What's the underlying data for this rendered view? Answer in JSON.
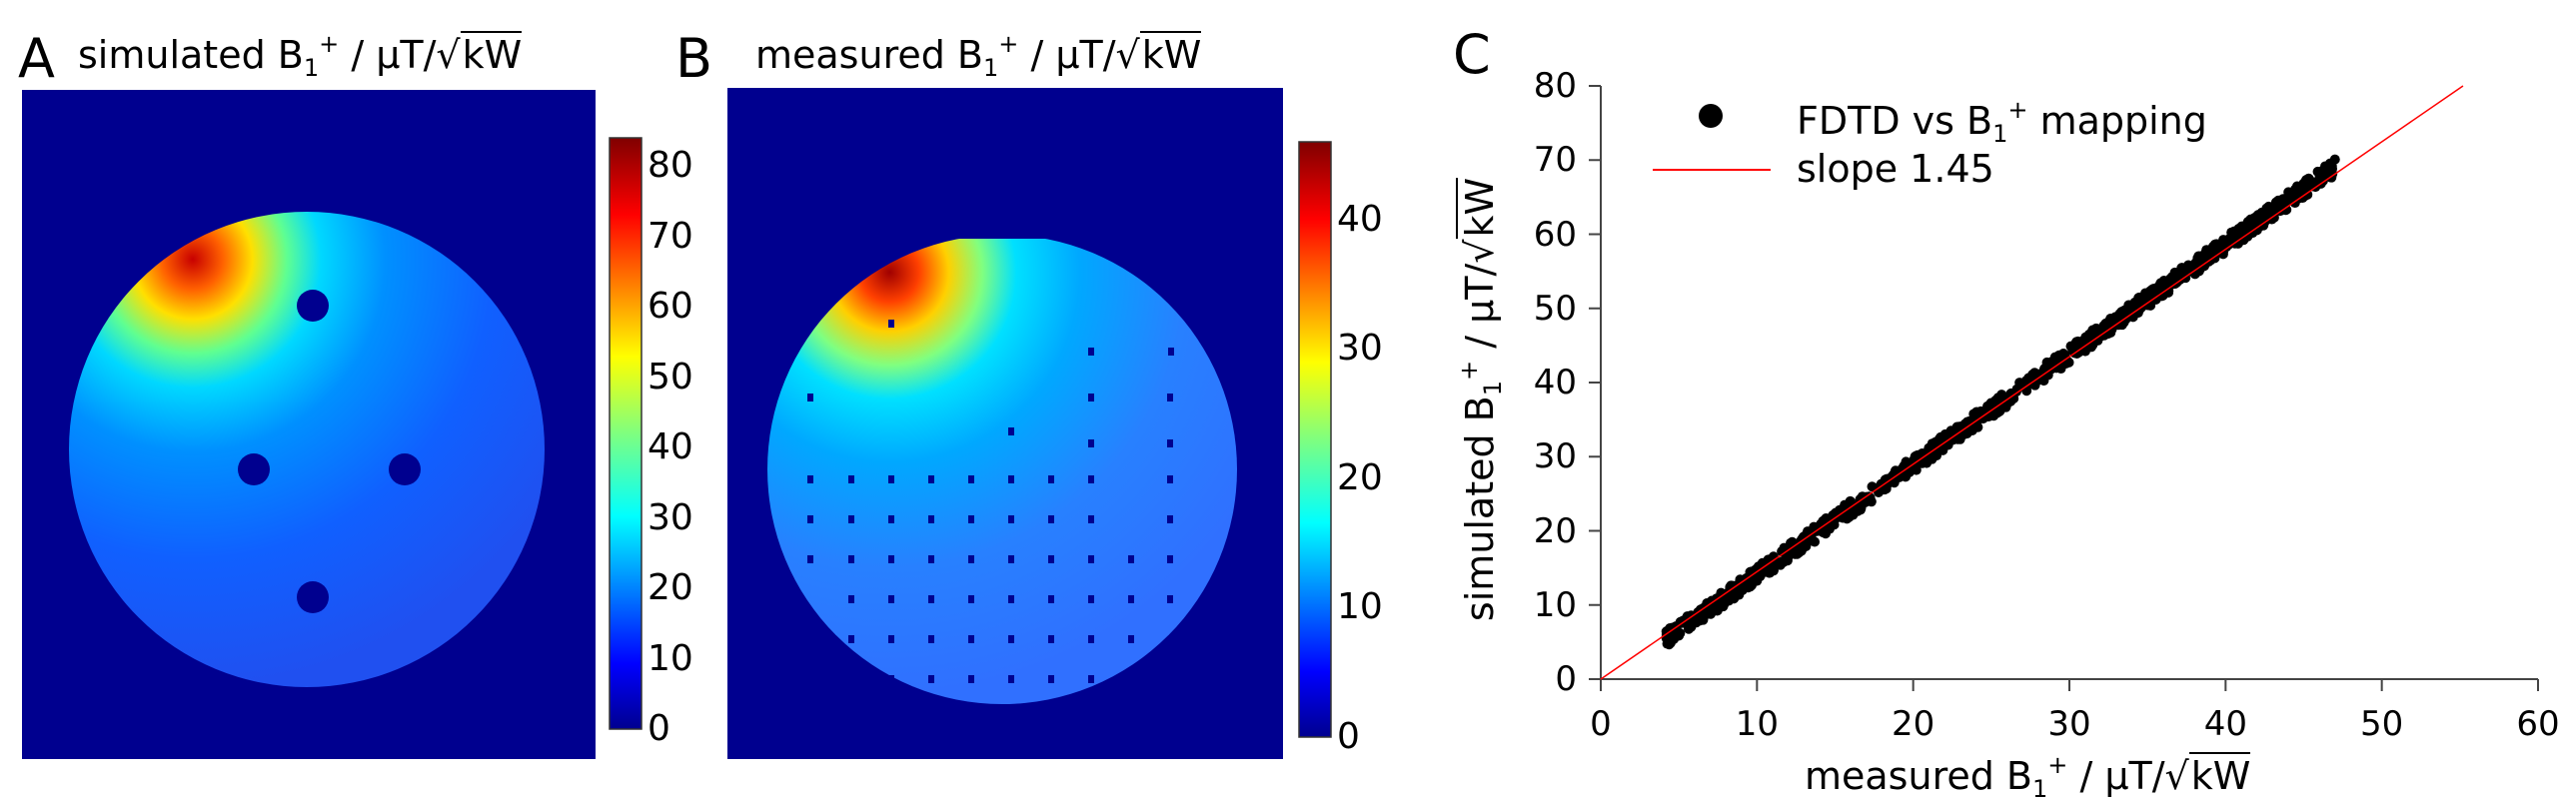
{
  "panels": {
    "a": {
      "letter": "A",
      "title_prefix": "simulated B",
      "title_sub": "1",
      "title_sup": "+",
      "title_mid": " / μT/",
      "title_root": "kW",
      "colorbar_ticks": [
        "0",
        "10",
        "20",
        "30",
        "40",
        "50",
        "60",
        "70",
        "80"
      ]
    },
    "b": {
      "letter": "B",
      "title_prefix": "measured B",
      "title_sub": "1",
      "title_sup": "+",
      "title_mid": " / μT/",
      "title_root": "kW",
      "colorbar_ticks": [
        "0",
        "10",
        "20",
        "30",
        "40"
      ]
    },
    "c": {
      "letter": "C"
    }
  },
  "chart_data": [
    {
      "type": "heatmap",
      "panel": "A",
      "title": "simulated B1+ / μT/√kW",
      "colorbar_range": [
        0,
        84
      ],
      "colorbar_ticks": [
        0,
        10,
        20,
        30,
        40,
        50,
        60,
        70,
        80
      ],
      "colormap": "jet"
    },
    {
      "type": "heatmap",
      "panel": "B",
      "title": "measured B1+ / μT/√kW",
      "colorbar_range": [
        0,
        46
      ],
      "colorbar_ticks": [
        0,
        10,
        20,
        30,
        40
      ],
      "colormap": "jet"
    },
    {
      "type": "scatter",
      "panel": "C",
      "xlabel_prefix": "measured B",
      "ylabel_prefix": "simulated B",
      "label_sub": "1",
      "label_sup": "+",
      "label_mid": " / μT/",
      "label_root": "kW",
      "xlim": [
        0,
        60
      ],
      "ylim": [
        0,
        80
      ],
      "xticks": [
        0,
        10,
        20,
        30,
        40,
        50,
        60
      ],
      "yticks": [
        0,
        10,
        20,
        30,
        40,
        50,
        60,
        70,
        80
      ],
      "series": [
        {
          "name": "FDTD vs B1+ mapping",
          "legend_prefix": "FDTD vs B",
          "legend_suffix": " mapping",
          "color": "#000000",
          "x_range": [
            4.2,
            47
          ],
          "y_range": [
            5.5,
            69
          ]
        },
        {
          "name": "slope 1.45",
          "type": "line",
          "color": "#ff0000",
          "slope": 1.45,
          "x": [
            0,
            55.2
          ],
          "y": [
            0,
            80
          ]
        }
      ],
      "legend_position": "top-left"
    }
  ]
}
